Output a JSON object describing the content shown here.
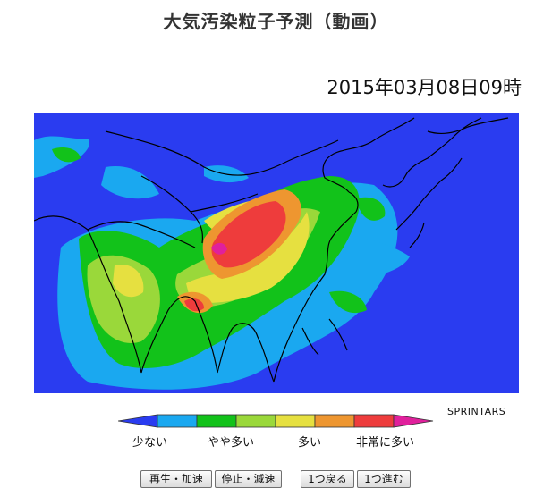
{
  "page": {
    "title": "大気汚染粒子予測（動画）",
    "timestamp": "2015年03月08日09時"
  },
  "map": {
    "background_color": "#2a3cf0",
    "coastline_color": "#000000"
  },
  "legend": {
    "credit": "SPRINTARS",
    "colors": [
      "#2a3cf0",
      "#1aa8f0",
      "#12c21a",
      "#9ad83a",
      "#e6e040",
      "#ee9630",
      "#ee3c3c",
      "#e0209c"
    ],
    "labels": {
      "low": "少ない",
      "somewhat_high": "やや多い",
      "high": "多い",
      "very_high": "非常に多い"
    }
  },
  "controls": {
    "play_label": "再生・加速",
    "stop_label": "停止・減速",
    "back_label": "1つ戻る",
    "forward_label": "1つ進む"
  }
}
